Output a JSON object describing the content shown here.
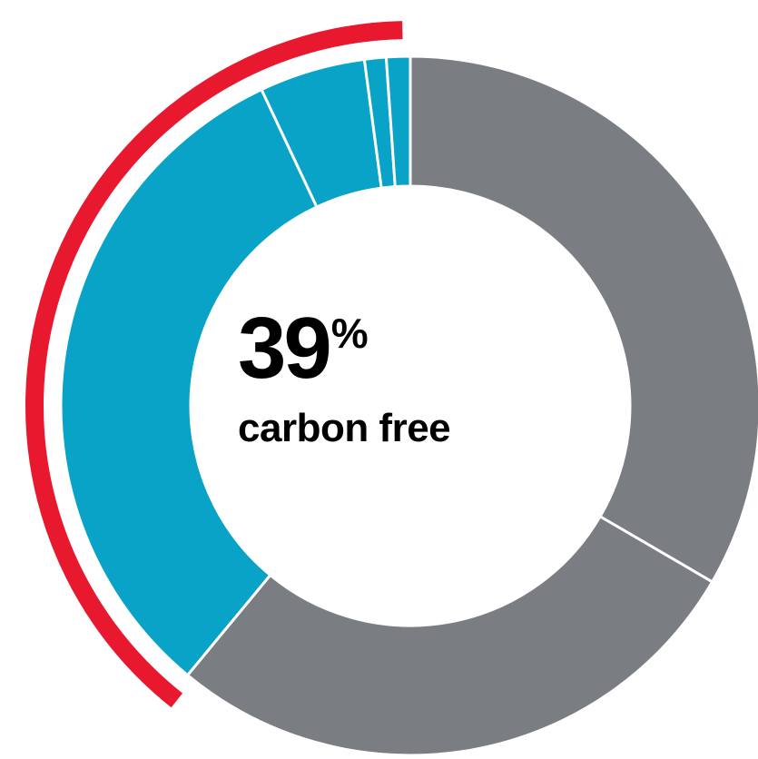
{
  "center": {
    "value": "39",
    "unit": "%",
    "label": "carbon free"
  },
  "chart_data": {
    "type": "pie",
    "variant": "donut",
    "title": "",
    "slices": [
      {
        "value": 33.4,
        "color": "#7a7d82",
        "carbon_free": false
      },
      {
        "value": 27.6,
        "color": "#7a7d82",
        "carbon_free": false
      },
      {
        "value": 32.0,
        "color": "#0aa3c8",
        "carbon_free": true
      },
      {
        "value": 4.9,
        "color": "#0aa3c8",
        "carbon_free": true
      },
      {
        "value": 1.0,
        "color": "#0aa3c8",
        "carbon_free": true
      },
      {
        "value": 1.1,
        "color": "#0aa3c8",
        "carbon_free": true
      }
    ],
    "highlight_arc": {
      "value": 39,
      "color": "#e8192f"
    },
    "legend": "none"
  }
}
